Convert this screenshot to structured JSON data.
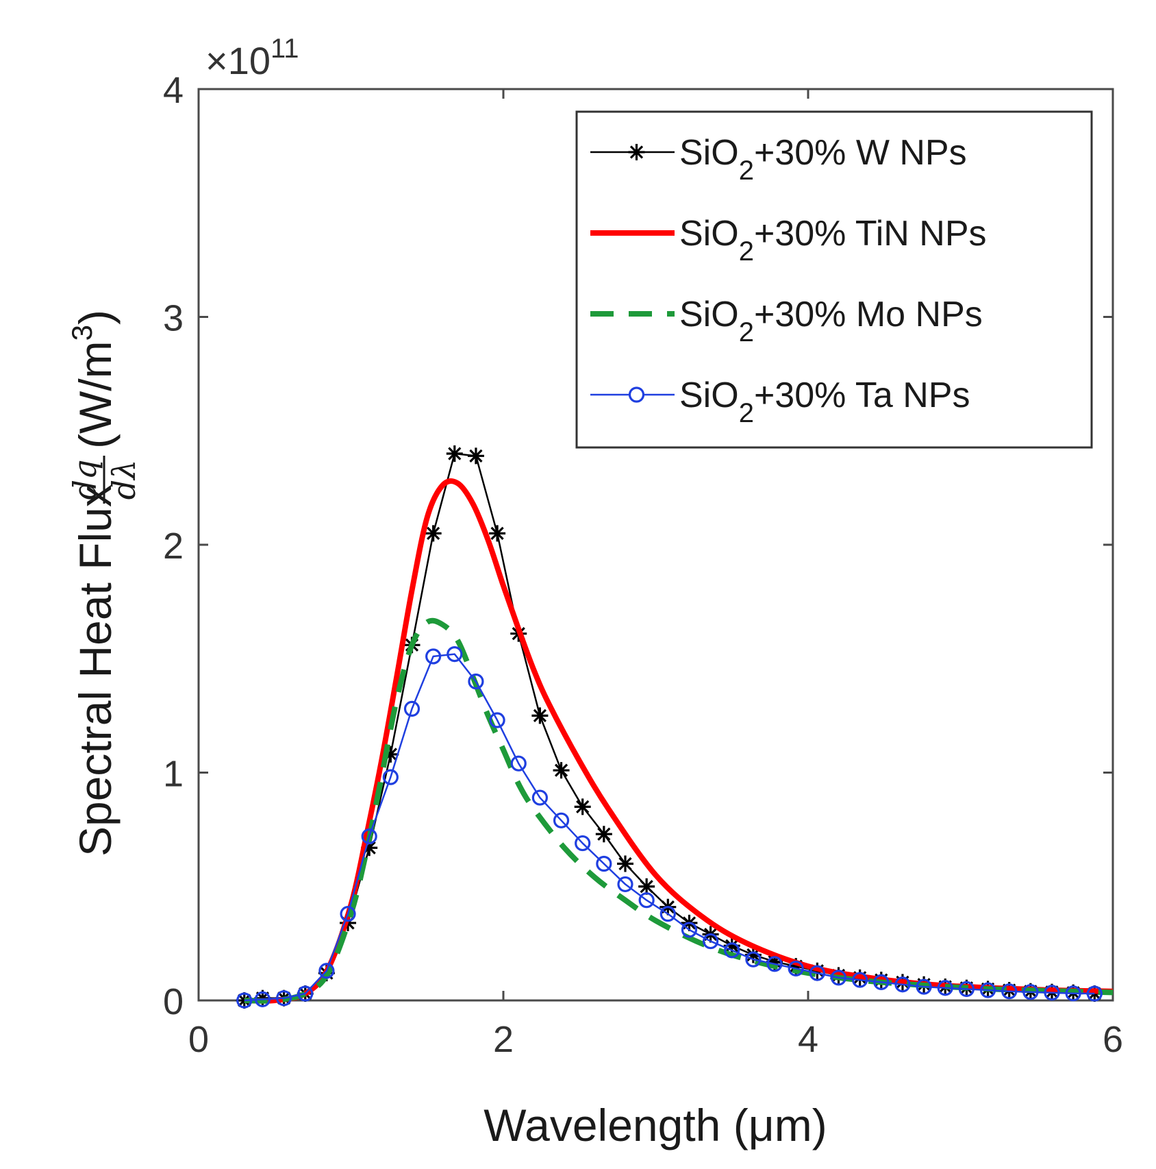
{
  "chart_data": {
    "type": "line",
    "title": "",
    "xlabel": "Wavelength (μm)",
    "ylabel": {
      "prefix": "Spectral Heat Flux",
      "frac_num": "dq",
      "frac_den": "dλ",
      "units": "(W/m",
      "units_exp": "3",
      "units_close": ")"
    },
    "y_multiplier": {
      "base": "×10",
      "exponent": "11"
    },
    "xlim": [
      0,
      6
    ],
    "ylim": [
      0,
      4
    ],
    "x_ticks": [
      "0",
      "2",
      "4",
      "6"
    ],
    "y_ticks": [
      "0",
      "1",
      "2",
      "3",
      "4"
    ],
    "legend_position": "top-right",
    "series": [
      {
        "name": "SiO",
        "sub": "2",
        "rest": "+30% W NPs",
        "color": "#000000",
        "style": "solid",
        "marker": "asterisk",
        "x": [
          0.3,
          0.42,
          0.56,
          0.7,
          0.84,
          0.98,
          1.12,
          1.26,
          1.4,
          1.54,
          1.68,
          1.82,
          1.96,
          2.1,
          2.24,
          2.38,
          2.52,
          2.66,
          2.8,
          2.94,
          3.08,
          3.22,
          3.36,
          3.5,
          3.64,
          3.78,
          3.92,
          4.06,
          4.2,
          4.34,
          4.48,
          4.62,
          4.76,
          4.9,
          5.04,
          5.18,
          5.32,
          5.46,
          5.6,
          5.74,
          5.88
        ],
        "y": [
          0.0,
          0.01,
          0.01,
          0.03,
          0.12,
          0.34,
          0.67,
          1.08,
          1.56,
          2.05,
          2.4,
          2.39,
          2.05,
          1.61,
          1.25,
          1.01,
          0.85,
          0.73,
          0.6,
          0.5,
          0.41,
          0.34,
          0.29,
          0.24,
          0.2,
          0.17,
          0.15,
          0.13,
          0.11,
          0.1,
          0.09,
          0.08,
          0.07,
          0.06,
          0.055,
          0.05,
          0.045,
          0.04,
          0.037,
          0.034,
          0.03
        ]
      },
      {
        "name": "SiO",
        "sub": "2",
        "rest": "+30% TiN NPs",
        "color": "#ff0000",
        "style": "solid",
        "marker": "none",
        "x": [
          0.3,
          0.5,
          0.7,
          0.85,
          1.0,
          1.1,
          1.2,
          1.3,
          1.4,
          1.5,
          1.6,
          1.7,
          1.8,
          1.9,
          2.0,
          2.1,
          2.2,
          2.3,
          2.5,
          2.7,
          3.0,
          3.3,
          3.6,
          4.0,
          4.4,
          4.8,
          5.2,
          5.6,
          6.0
        ],
        "y": [
          0.0,
          0.0,
          0.03,
          0.14,
          0.42,
          0.72,
          1.05,
          1.42,
          1.8,
          2.12,
          2.26,
          2.27,
          2.18,
          2.02,
          1.82,
          1.63,
          1.45,
          1.3,
          1.05,
          0.83,
          0.55,
          0.37,
          0.25,
          0.15,
          0.1,
          0.07,
          0.055,
          0.045,
          0.04
        ]
      },
      {
        "name": "SiO",
        "sub": "2",
        "rest": "+30% Mo NPs",
        "color": "#1e9a3a",
        "style": "dashed",
        "marker": "none",
        "x": [
          0.3,
          0.5,
          0.7,
          0.85,
          1.0,
          1.1,
          1.2,
          1.3,
          1.4,
          1.5,
          1.6,
          1.7,
          1.8,
          1.9,
          2.0,
          2.1,
          2.2,
          2.4,
          2.6,
          2.8,
          3.0,
          3.3,
          3.6,
          4.0,
          4.4,
          4.8,
          5.2,
          5.6,
          6.0
        ],
        "y": [
          0.0,
          0.0,
          0.03,
          0.12,
          0.38,
          0.65,
          0.98,
          1.32,
          1.56,
          1.66,
          1.65,
          1.58,
          1.42,
          1.25,
          1.1,
          0.95,
          0.84,
          0.67,
          0.54,
          0.44,
          0.35,
          0.25,
          0.18,
          0.12,
          0.085,
          0.065,
          0.05,
          0.042,
          0.035
        ]
      },
      {
        "name": "SiO",
        "sub": "2",
        "rest": "+30% Ta NPs",
        "color": "#1f3fe0",
        "style": "solid",
        "marker": "circle",
        "x": [
          0.3,
          0.42,
          0.56,
          0.7,
          0.84,
          0.98,
          1.12,
          1.26,
          1.4,
          1.54,
          1.68,
          1.82,
          1.96,
          2.1,
          2.24,
          2.38,
          2.52,
          2.66,
          2.8,
          2.94,
          3.08,
          3.22,
          3.36,
          3.5,
          3.64,
          3.78,
          3.92,
          4.06,
          4.2,
          4.34,
          4.48,
          4.62,
          4.76,
          4.9,
          5.04,
          5.18,
          5.32,
          5.46,
          5.6,
          5.74,
          5.88
        ],
        "y": [
          0.0,
          0.005,
          0.01,
          0.03,
          0.13,
          0.38,
          0.72,
          0.98,
          1.28,
          1.51,
          1.52,
          1.4,
          1.23,
          1.04,
          0.89,
          0.79,
          0.69,
          0.6,
          0.51,
          0.44,
          0.38,
          0.31,
          0.26,
          0.22,
          0.18,
          0.16,
          0.14,
          0.12,
          0.1,
          0.09,
          0.08,
          0.07,
          0.06,
          0.055,
          0.05,
          0.045,
          0.04,
          0.037,
          0.034,
          0.031,
          0.03
        ]
      }
    ]
  }
}
